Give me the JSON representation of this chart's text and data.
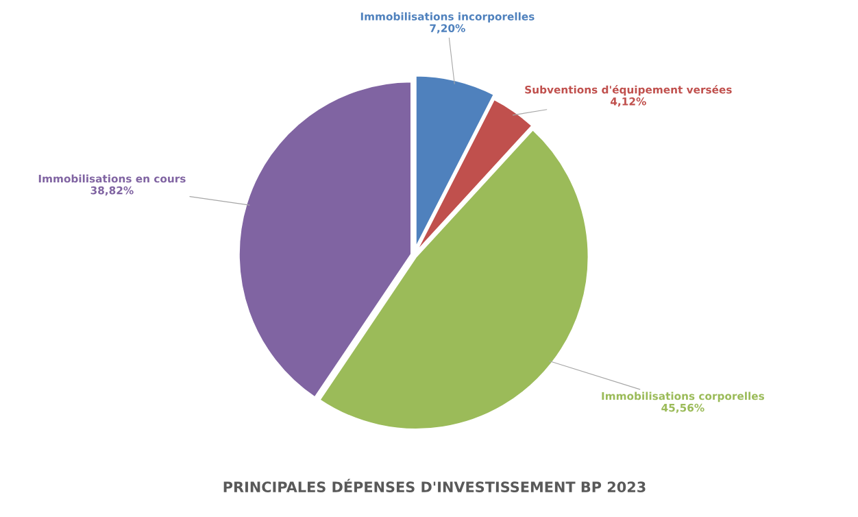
{
  "chart_data": {
    "type": "pie",
    "title": "PRINCIPALES DÉPENSES D'INVESTISSEMENT BP 2023",
    "categories": [
      "Immobilisations incorporelles",
      "Subventions d'équipement versées",
      "Immobilisations corporelles",
      "Immobilisations en cours"
    ],
    "values": [
      7.2,
      4.12,
      45.56,
      38.82
    ],
    "value_labels": [
      "7,20%",
      "4,12%",
      "45,56%",
      "38,82%"
    ],
    "colors": [
      "#4f81bd",
      "#c0504d",
      "#9bbb59",
      "#8064a2"
    ],
    "legend": false
  }
}
